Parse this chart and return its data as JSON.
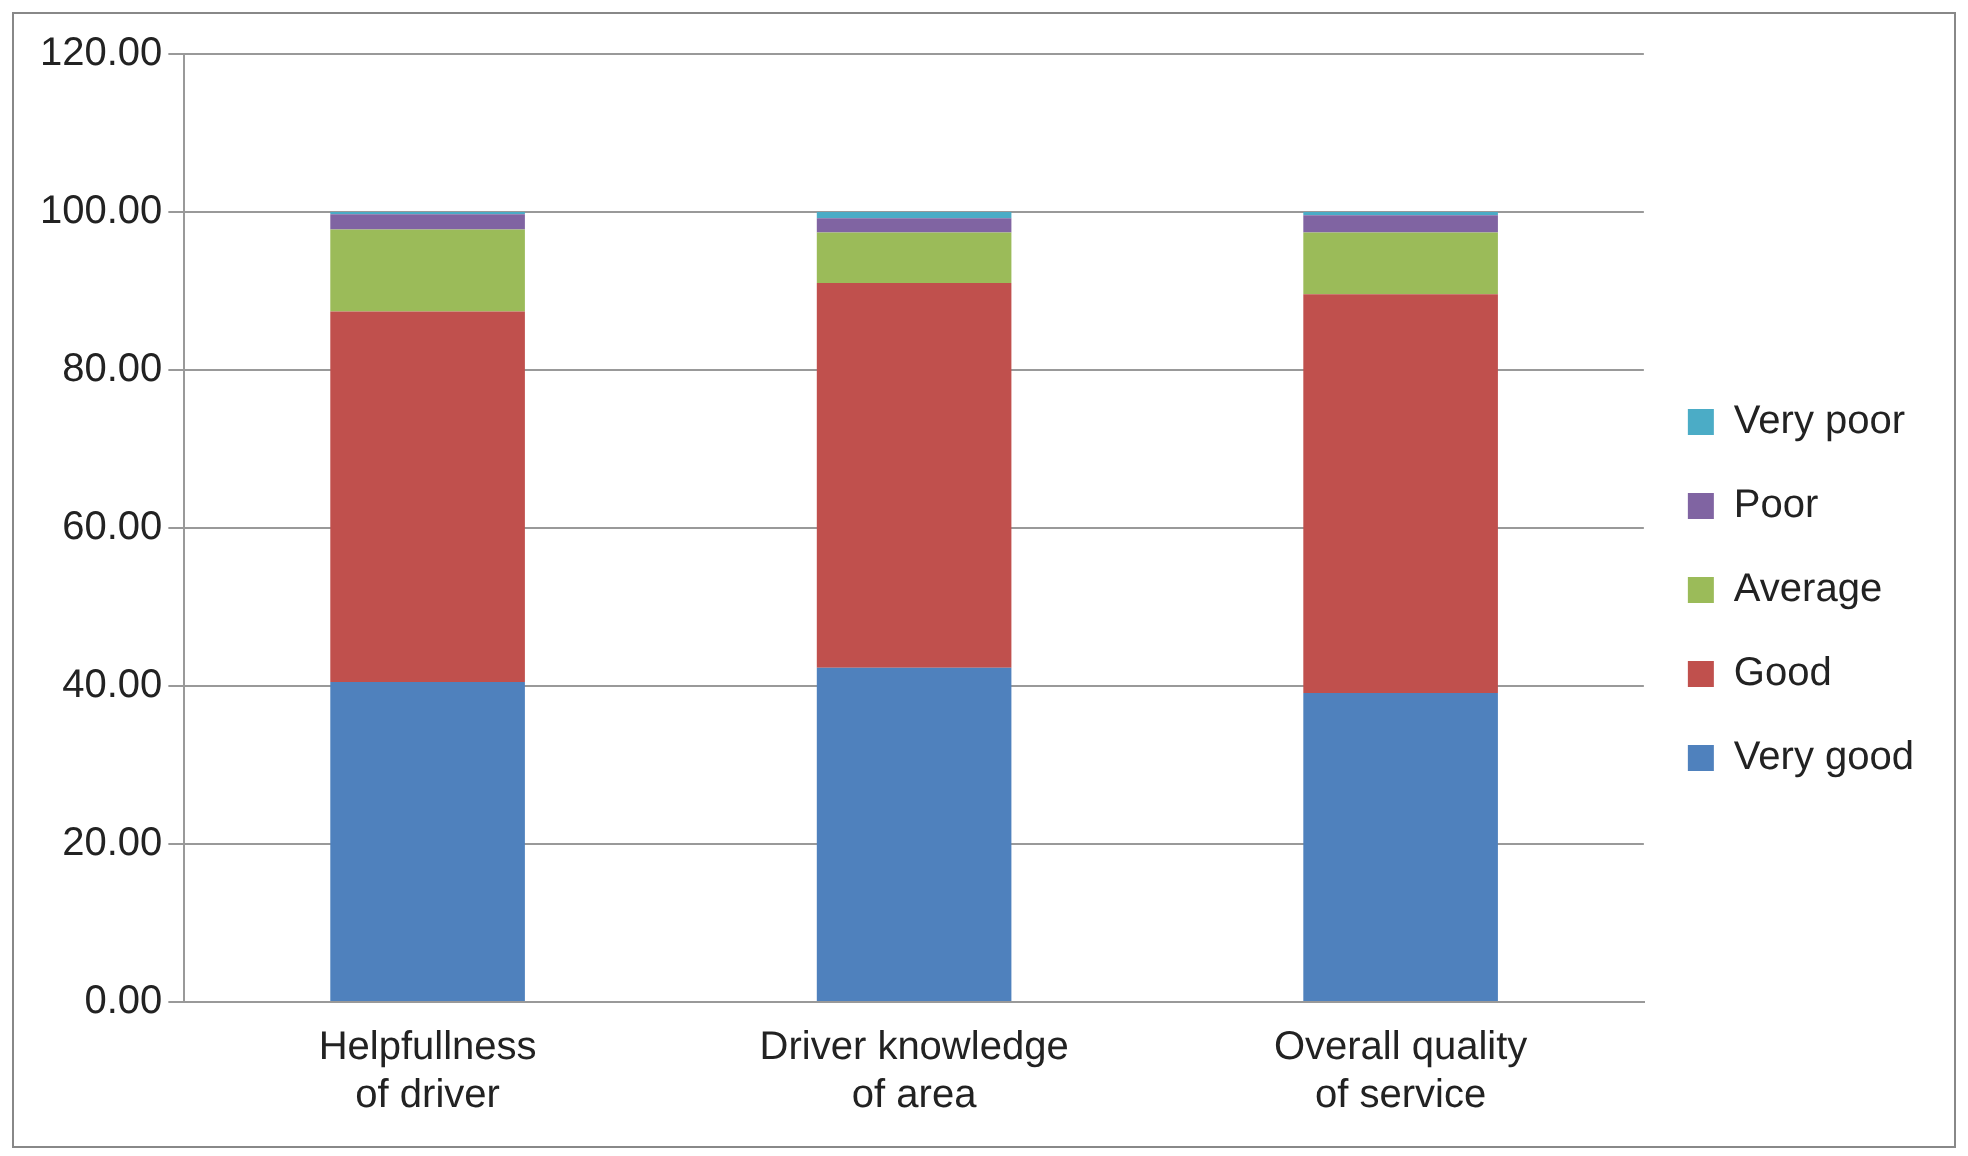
{
  "chart_data": {
    "type": "bar",
    "stacked": true,
    "categories": [
      "Helpfullness of driver",
      "Driver knowledge of area",
      "Overall quality of service"
    ],
    "series": [
      {
        "name": "Very good",
        "color": "#4f81bd",
        "values": [
          40.5,
          42.3,
          39.1
        ]
      },
      {
        "name": "Good",
        "color": "#c0504d",
        "values": [
          46.9,
          48.7,
          50.5
        ]
      },
      {
        "name": "Average",
        "color": "#9bbb59",
        "values": [
          10.4,
          6.4,
          7.8
        ]
      },
      {
        "name": "Poor",
        "color": "#8064a2",
        "values": [
          1.9,
          1.8,
          2.2
        ]
      },
      {
        "name": "Very poor",
        "color": "#4bacc6",
        "values": [
          0.3,
          0.8,
          0.4
        ]
      }
    ],
    "ylim": [
      0,
      120
    ],
    "yticks": [
      {
        "value": 0,
        "label": "0.00"
      },
      {
        "value": 20,
        "label": "20.00"
      },
      {
        "value": 40,
        "label": "40.00"
      },
      {
        "value": 60,
        "label": "60.00"
      },
      {
        "value": 80,
        "label": "80.00"
      },
      {
        "value": 100,
        "label": "100.00"
      },
      {
        "value": 120,
        "label": "120.00"
      }
    ],
    "grid": "y",
    "legend": "right"
  }
}
